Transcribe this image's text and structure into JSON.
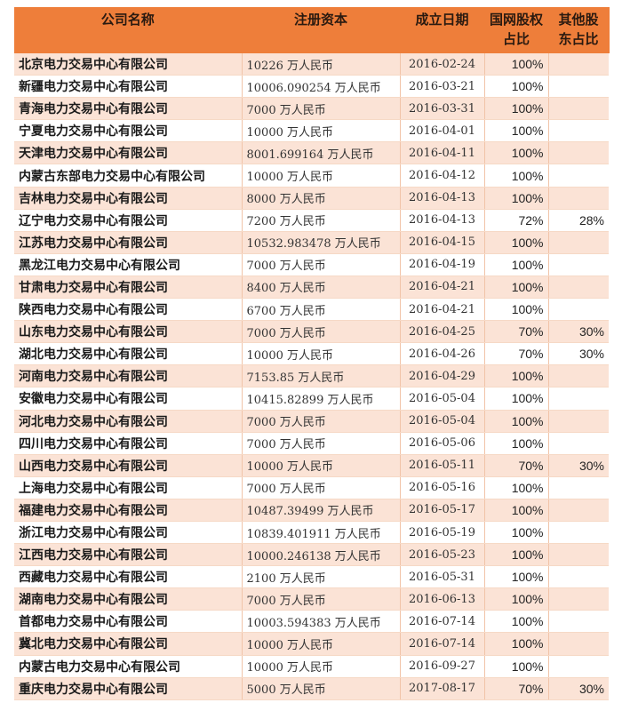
{
  "table": {
    "headers": [
      "公司名称",
      "注册资本",
      "成立日期",
      "国网股权占比",
      "其他股东占比"
    ],
    "header_colors": {
      "header_bg": "#ee7e3a",
      "odd_row_bg": "#fbe3d6",
      "even_row_bg": "#ffffff"
    },
    "rows": [
      [
        "北京电力交易中心有限公司",
        "10226 万人民币",
        "2016-02-24",
        "100%",
        ""
      ],
      [
        "新疆电力交易中心有限公司",
        "10006.090254 万人民币",
        "2016-03-21",
        "100%",
        ""
      ],
      [
        "青海电力交易中心有限公司",
        "7000 万人民币",
        "2016-03-31",
        "100%",
        ""
      ],
      [
        "宁夏电力交易中心有限公司",
        "10000 万人民币",
        "2016-04-01",
        "100%",
        ""
      ],
      [
        "天津电力交易中心有限公司",
        "8001.699164 万人民币",
        "2016-04-11",
        "100%",
        ""
      ],
      [
        "内蒙古东部电力交易中心有限公司",
        "10000 万人民币",
        "2016-04-12",
        "100%",
        ""
      ],
      [
        "吉林电力交易中心有限公司",
        "8000 万人民币",
        "2016-04-13",
        "100%",
        ""
      ],
      [
        "辽宁电力交易中心有限公司",
        "7200 万人民币",
        "2016-04-13",
        "72%",
        "28%"
      ],
      [
        "江苏电力交易中心有限公司",
        "10532.983478 万人民币",
        "2016-04-15",
        "100%",
        ""
      ],
      [
        "黑龙江电力交易中心有限公司",
        "7000 万人民币",
        "2016-04-19",
        "100%",
        ""
      ],
      [
        "甘肃电力交易中心有限公司",
        "8400 万人民币",
        "2016-04-21",
        "100%",
        ""
      ],
      [
        "陕西电力交易中心有限公司",
        "6700 万人民币",
        "2016-04-21",
        "100%",
        ""
      ],
      [
        "山东电力交易中心有限公司",
        "7000 万人民币",
        "2016-04-25",
        "70%",
        "30%"
      ],
      [
        "湖北电力交易中心有限公司",
        "10000 万人民币",
        "2016-04-26",
        "70%",
        "30%"
      ],
      [
        "河南电力交易中心有限公司",
        "7153.85 万人民币",
        "2016-04-29",
        "100%",
        ""
      ],
      [
        "安徽电力交易中心有限公司",
        "10415.82899 万人民币",
        "2016-05-04",
        "100%",
        ""
      ],
      [
        "河北电力交易中心有限公司",
        "7000 万人民币",
        "2016-05-04",
        "100%",
        ""
      ],
      [
        "四川电力交易中心有限公司",
        "7000 万人民币",
        "2016-05-06",
        "100%",
        ""
      ],
      [
        "山西电力交易中心有限公司",
        "10000 万人民币",
        "2016-05-11",
        "70%",
        "30%"
      ],
      [
        "上海电力交易中心有限公司",
        "7000 万人民币",
        "2016-05-16",
        "100%",
        ""
      ],
      [
        "福建电力交易中心有限公司",
        "10487.39499 万人民币",
        "2016-05-17",
        "100%",
        ""
      ],
      [
        "浙江电力交易中心有限公司",
        "10839.401911 万人民币",
        "2016-05-19",
        "100%",
        ""
      ],
      [
        "江西电力交易中心有限公司",
        "10000.246138 万人民币",
        "2016-05-23",
        "100%",
        ""
      ],
      [
        "西藏电力交易中心有限公司",
        "2100 万人民币",
        "2016-05-31",
        "100%",
        ""
      ],
      [
        "湖南电力交易中心有限公司",
        "7000 万人民币",
        "2016-06-13",
        "100%",
        ""
      ],
      [
        "首都电力交易中心有限公司",
        "10003.594383 万人民币",
        "2016-07-14",
        "100%",
        ""
      ],
      [
        "冀北电力交易中心有限公司",
        "10000 万人民币",
        "2016-07-14",
        "100%",
        ""
      ],
      [
        "内蒙古电力交易中心有限公司",
        "10000 万人民币",
        "2016-09-27",
        "100%",
        ""
      ],
      [
        "重庆电力交易中心有限公司",
        "5000 万人民币",
        "2017-08-17",
        "70%",
        "30%"
      ]
    ]
  }
}
